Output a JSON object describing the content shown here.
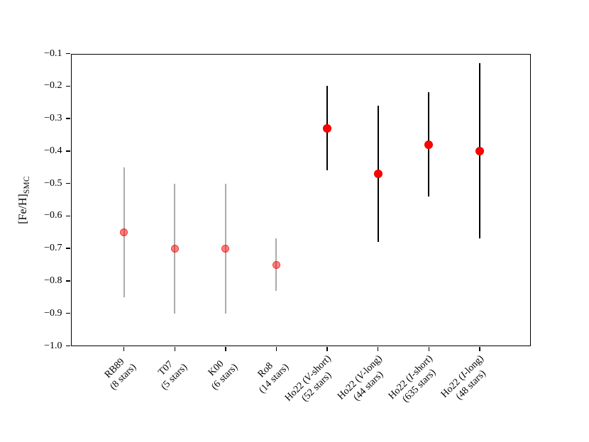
{
  "figure": {
    "background": "#ffffff",
    "ylabel_main": "[Fe/H]",
    "ylabel_sub": "SMC"
  },
  "chart_data": {
    "type": "scatter",
    "title": "",
    "xlabel": "",
    "ylabel": "[Fe/H]_SMC",
    "ylim": [
      -1.0,
      -0.1
    ],
    "yticks": [
      -0.1,
      -0.2,
      -0.3,
      -0.4,
      -0.5,
      -0.6,
      -0.7,
      -0.8,
      -0.9,
      -1.0
    ],
    "grid": false,
    "legend": false,
    "x_tick_rotation_deg": 45,
    "categories": [
      {
        "label": "RB89",
        "sublabel": "(8 stars)"
      },
      {
        "label": "T07",
        "sublabel": "(5 stars)"
      },
      {
        "label": "K00",
        "sublabel": "(6 stars)"
      },
      {
        "label": "Ro8",
        "sublabel": "(14 stars)"
      },
      {
        "label": "Ho22 (*V*-short)",
        "sublabel": "(52 stars)"
      },
      {
        "label": "Ho22 (*V*-long)",
        "sublabel": "(44 stars)"
      },
      {
        "label": "Ho22 (*I*-short)",
        "sublabel": "(635 stars)"
      },
      {
        "label": "Ho22 (*I*-long)",
        "sublabel": "(48 stars)"
      }
    ],
    "series": [
      {
        "name": "literature-faded",
        "marker_color": "rgba(255,0,0,0.5)",
        "marker_edge_color": "rgba(225,0,0,0.55)",
        "errorbar_color": "#ababab",
        "marker_size_px": 11,
        "points": [
          {
            "category_index": 0,
            "y": -0.65,
            "y_lo": -0.85,
            "y_hi": -0.45
          },
          {
            "category_index": 1,
            "y": -0.7,
            "y_lo": -0.9,
            "y_hi": -0.5
          },
          {
            "category_index": 2,
            "y": -0.7,
            "y_lo": -0.9,
            "y_hi": -0.5
          },
          {
            "category_index": 3,
            "y": -0.75,
            "y_lo": -0.83,
            "y_hi": -0.67
          }
        ]
      },
      {
        "name": "Ho22-solid",
        "marker_color": "#ff0000",
        "marker_edge_color": "#e60000",
        "errorbar_color": "#000000",
        "marker_size_px": 12,
        "points": [
          {
            "category_index": 4,
            "y": -0.33,
            "y_lo": -0.46,
            "y_hi": -0.2
          },
          {
            "category_index": 5,
            "y": -0.47,
            "y_lo": -0.68,
            "y_hi": -0.26
          },
          {
            "category_index": 6,
            "y": -0.38,
            "y_lo": -0.54,
            "y_hi": -0.22
          },
          {
            "category_index": 7,
            "y": -0.4,
            "y_lo": -0.67,
            "y_hi": -0.13
          }
        ]
      }
    ]
  }
}
